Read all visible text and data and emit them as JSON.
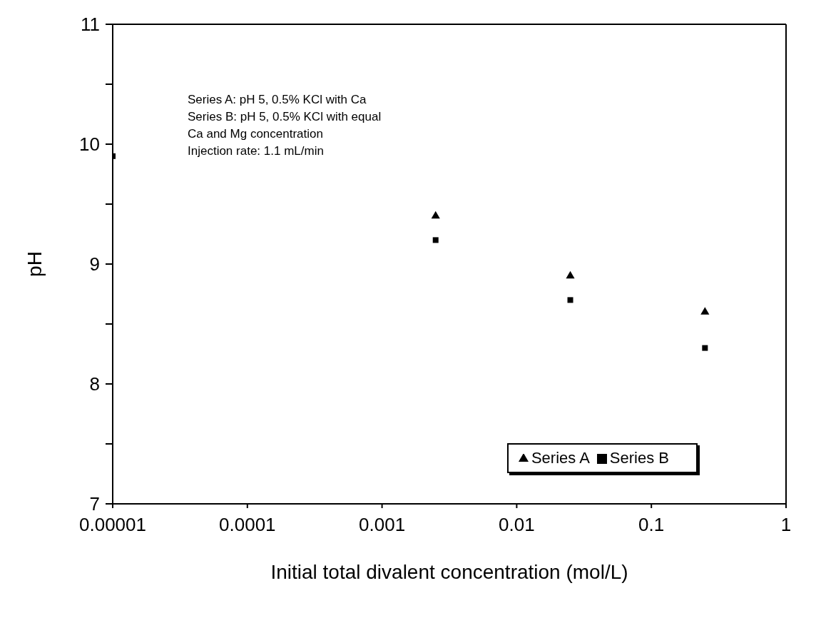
{
  "chart_data": {
    "type": "scatter",
    "xlabel": "Initial total divalent concentration (mol/L)",
    "ylabel": "pH",
    "log": "x",
    "xlim": [
      1e-05,
      1
    ],
    "xticks": [
      {
        "value": 1e-05,
        "label": "0.00001"
      },
      0.0001,
      0.001,
      0.01,
      0.1,
      1
    ],
    "ylim": [
      7,
      11
    ],
    "yticks": [
      7,
      {
        "value": 7.5,
        "label": null
      },
      8,
      {
        "value": 8.5,
        "label": null
      },
      9,
      {
        "value": 9.5,
        "label": null
      },
      10,
      {
        "value": 10.5,
        "label": null
      },
      11
    ],
    "x": [
      1e-05,
      0.0025,
      0.025,
      0.25
    ],
    "series": [
      {
        "name": "Series A",
        "color": "#000000",
        "marker": "triangle",
        "values": [
          null,
          9.4,
          8.9,
          8.6
        ]
      },
      {
        "name": "Series B",
        "color": "#000000",
        "marker": "square",
        "values": [
          9.9,
          9.2,
          8.7,
          8.3
        ]
      }
    ],
    "legend": "bottom right",
    "annotations": [
      "Series A: pH 5, 0.5% KCl with Ca",
      "Series B: pH 5, 0.5% KCl with equal",
      "Ca and Mg concentration",
      "Injection rate: 1.1 mL/min"
    ]
  }
}
